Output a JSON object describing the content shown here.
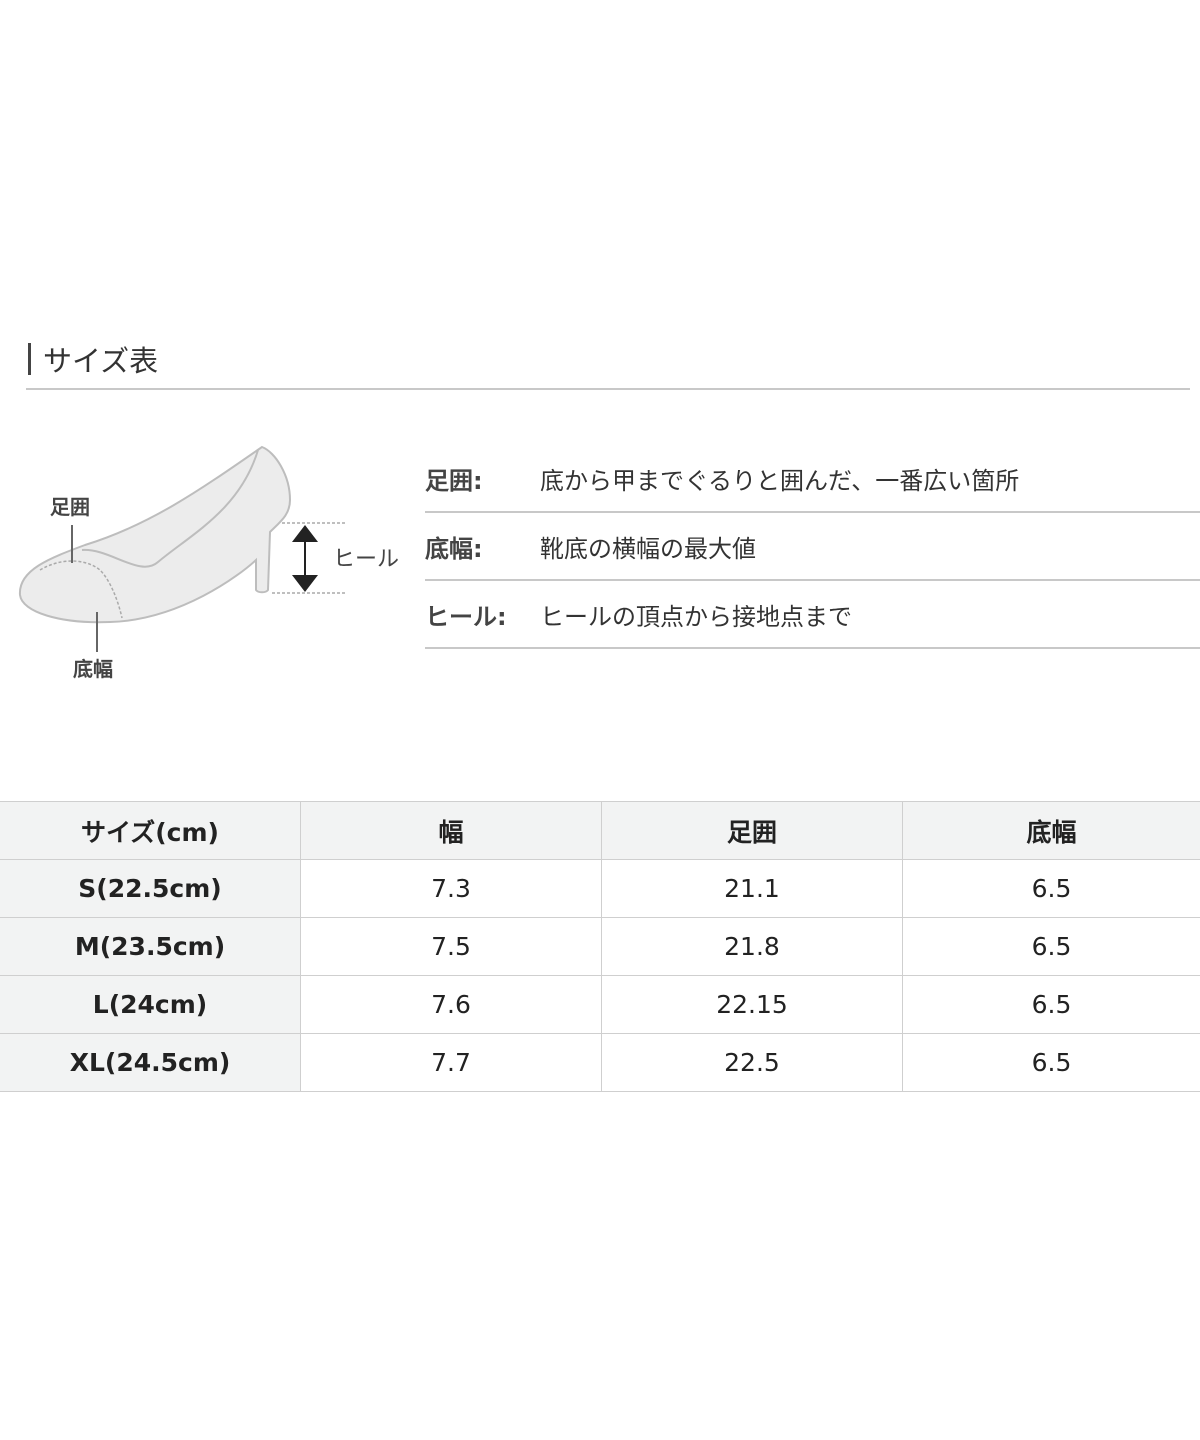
{
  "section_title": "サイズ表",
  "diagram": {
    "label_toe": "足囲",
    "label_sole": "底幅",
    "label_heel": "ヒール"
  },
  "definitions": [
    {
      "term": "足囲:",
      "desc": "底から甲までぐるりと囲んだ、一番広い箇所"
    },
    {
      "term": "底幅:",
      "desc": "靴底の横幅の最大値"
    },
    {
      "term": "ヒール:",
      "desc": "ヒールの頂点から接地点まで"
    }
  ],
  "table": {
    "headers": [
      "サイズ(cm)",
      "幅",
      "足囲",
      "底幅"
    ],
    "rows": [
      [
        "S(22.5cm)",
        "7.3",
        "21.1",
        "6.5"
      ],
      [
        "M(23.5cm)",
        "7.5",
        "21.8",
        "6.5"
      ],
      [
        "L(24cm)",
        "7.6",
        "22.15",
        "6.5"
      ],
      [
        "XL(24.5cm)",
        "7.7",
        "22.5",
        "6.5"
      ]
    ]
  }
}
